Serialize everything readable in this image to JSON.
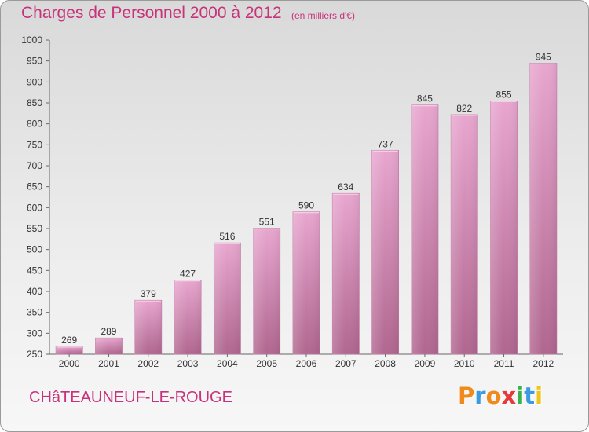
{
  "header": {
    "title": "Charges de Personnel 2000 à 2012",
    "subtitle": "(en milliers d'€)"
  },
  "footer": {
    "town": "CHâTEAUNEUF-LE-ROUGE",
    "logo": [
      "P",
      "r",
      "o",
      "x",
      "i",
      "t",
      "i"
    ]
  },
  "colors": {
    "accent": "#c8327a",
    "bar_top": "#e8a6cf",
    "bar_bottom": "#b0668f",
    "logo": [
      "#f08a1c",
      "#3b9be0",
      "#f08a1c",
      "#e43a3a",
      "#37b24d",
      "#3b9be0",
      "#f0c419"
    ]
  },
  "chart_data": {
    "type": "bar",
    "categories": [
      "2000",
      "2001",
      "2002",
      "2003",
      "2004",
      "2005",
      "2006",
      "2007",
      "2008",
      "2009",
      "2010",
      "2011",
      "2012"
    ],
    "values": [
      269,
      289,
      379,
      427,
      516,
      551,
      590,
      634,
      737,
      845,
      822,
      855,
      945
    ],
    "ylim": [
      250,
      1000
    ],
    "yticks": [
      250,
      300,
      350,
      400,
      450,
      500,
      550,
      600,
      650,
      700,
      750,
      800,
      850,
      900,
      950,
      1000
    ],
    "grid": false,
    "data_labels": true
  }
}
